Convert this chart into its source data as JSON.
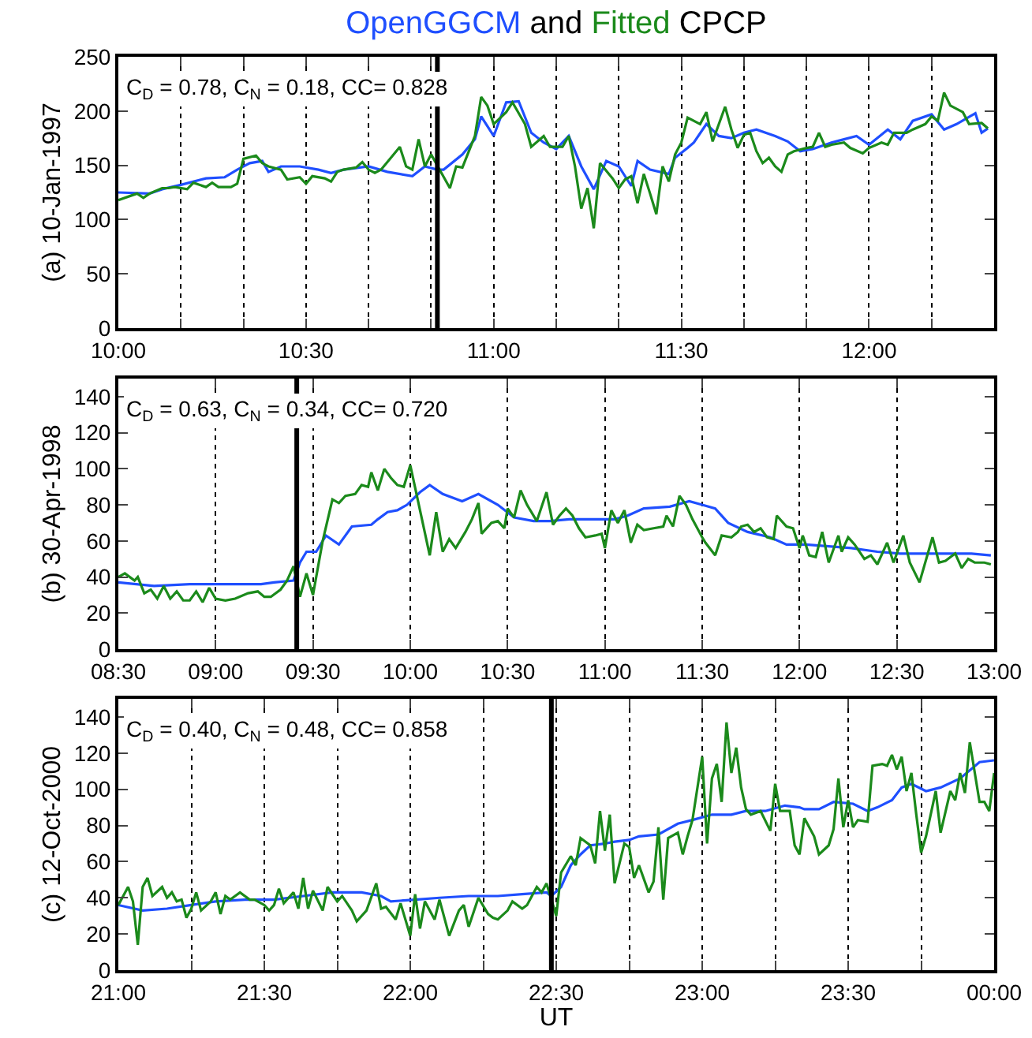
{
  "chart_data": [
    {
      "type": "line",
      "title": "OpenGGCM and Fitted CPCP",
      "ylabel": "(a) 10-Jan-1997",
      "annotations": [
        "C$_{D}$ = 0.78, C$_{N}$ = 0.18, CC= 0.828"
      ],
      "grid": "x",
      "tick_labels": "xy",
      "line_style": "solid",
      "xlim": [
        "1997-01-10T10:00",
        "1997-01-10T12:20"
      ],
      "ylim": [
        0,
        250
      ],
      "yticks": [
        0,
        50,
        100,
        150,
        200,
        250
      ],
      "xticks": [
        {
          "value": "1997-01-10T10:00",
          "label": "10:00"
        },
        {
          "value": "1997-01-10T10:10",
          "label": null
        },
        {
          "value": "1997-01-10T10:20",
          "label": null
        },
        {
          "value": "1997-01-10T10:30",
          "label": "10:30"
        },
        {
          "value": "1997-01-10T10:40",
          "label": null
        },
        {
          "value": "1997-01-10T10:50",
          "label": null
        },
        {
          "value": "1997-01-10T11:00",
          "label": "11:00"
        },
        {
          "value": "1997-01-10T11:10",
          "label": null
        },
        {
          "value": "1997-01-10T11:20",
          "label": null
        },
        {
          "value": "1997-01-10T11:30",
          "label": "11:30"
        },
        {
          "value": "1997-01-10T11:40",
          "label": null
        },
        {
          "value": "1997-01-10T11:50",
          "label": null
        },
        {
          "value": "1997-01-10T12:00",
          "label": "12:00"
        },
        {
          "value": "1997-01-10T12:10",
          "label": null
        },
        {
          "value": "1997-01-10T12:20",
          "label": null
        }
      ],
      "ref_lines": [
        {
          "axis": "x",
          "value": "1997-01-10T10:51",
          "color": "#000000",
          "line_style": "solid"
        }
      ],
      "series": [
        {
          "color": "#1f4fff",
          "x": [
            "1997-01-10T10:00",
            "1997-01-10T10:05",
            "1997-01-10T10:07",
            "1997-01-10T10:10",
            "1997-01-10T10:14",
            "1997-01-10T10:17",
            "1997-01-10T10:19",
            "1997-01-10T10:21",
            "1997-01-10T10:23",
            "1997-01-10T10:24",
            "1997-01-10T10:26",
            "1997-01-10T10:29",
            "1997-01-10T10:32",
            "1997-01-10T10:34",
            "1997-01-10T10:36",
            "1997-01-10T10:40",
            "1997-01-10T10:43",
            "1997-01-10T10:47",
            "1997-01-10T10:49",
            "1997-01-10T10:51",
            "1997-01-10T10:52",
            "1997-01-10T10:55",
            "1997-01-10T10:57",
            "1997-01-10T10:58",
            "1997-01-10T11:00",
            "1997-01-10T11:02",
            "1997-01-10T11:04",
            "1997-01-10T11:06",
            "1997-01-10T11:08",
            "1997-01-10T11:10",
            "1997-01-10T11:12",
            "1997-01-10T11:14",
            "1997-01-10T11:16",
            "1997-01-10T11:18",
            "1997-01-10T11:20",
            "1997-01-10T11:22",
            "1997-01-10T11:23",
            "1997-01-10T11:25",
            "1997-01-10T11:28",
            "1997-01-10T11:29",
            "1997-01-10T11:31",
            "1997-01-10T11:32",
            "1997-01-10T11:34",
            "1997-01-10T11:36",
            "1997-01-10T11:38",
            "1997-01-10T11:40",
            "1997-01-10T11:42",
            "1997-01-10T11:45",
            "1997-01-10T11:47",
            "1997-01-10T11:49",
            "1997-01-10T11:51",
            "1997-01-10T11:54",
            "1997-01-10T11:56",
            "1997-01-10T11:58",
            "1997-01-10T12:00",
            "1997-01-10T12:03",
            "1997-01-10T12:05",
            "1997-01-10T12:07",
            "1997-01-10T12:10",
            "1997-01-10T12:12",
            "1997-01-10T12:14",
            "1997-01-10T12:17",
            "1997-01-10T12:18",
            "1997-01-10T12:19"
          ],
          "values": [
            125,
            124,
            128,
            132,
            138,
            139,
            146,
            152,
            154,
            144,
            149,
            149,
            146,
            143,
            146,
            149,
            144,
            140,
            149,
            146,
            146,
            160,
            174,
            195,
            177,
            208,
            209,
            180,
            171,
            165,
            177,
            149,
            128,
            154,
            149,
            131,
            154,
            146,
            142,
            157,
            166,
            171,
            188,
            177,
            175,
            180,
            183,
            177,
            172,
            163,
            165,
            171,
            174,
            177,
            169,
            183,
            174,
            191,
            197,
            183,
            188,
            198,
            180,
            184
          ]
        },
        {
          "color": "#1b8a1b",
          "x": [
            "1997-01-10T10:00",
            "1997-01-10T10:02",
            "1997-01-10T10:03",
            "1997-01-10T10:04",
            "1997-01-10T10:05",
            "1997-01-10T10:07",
            "1997-01-10T10:08",
            "1997-01-10T10:09",
            "1997-01-10T10:11",
            "1997-01-10T10:12",
            "1997-01-10T10:14",
            "1997-01-10T10:15",
            "1997-01-10T10:16",
            "1997-01-10T10:18",
            "1997-01-10T10:19",
            "1997-01-10T10:20",
            "1997-01-10T10:22",
            "1997-01-10T10:23",
            "1997-01-10T10:24",
            "1997-01-10T10:26",
            "1997-01-10T10:27",
            "1997-01-10T10:29",
            "1997-01-10T10:30",
            "1997-01-10T10:31",
            "1997-01-10T10:33",
            "1997-01-10T10:34",
            "1997-01-10T10:35",
            "1997-01-10T10:36",
            "1997-01-10T10:38",
            "1997-01-10T10:39",
            "1997-01-10T10:40",
            "1997-01-10T10:41",
            "1997-01-10T10:42",
            "1997-01-10T10:43",
            "1997-01-10T10:45",
            "1997-01-10T10:46",
            "1997-01-10T10:47",
            "1997-01-10T10:48",
            "1997-01-10T10:49",
            "1997-01-10T10:50",
            "1997-01-10T10:53",
            "1997-01-10T10:54",
            "1997-01-10T10:55",
            "1997-01-10T10:57",
            "1997-01-10T10:58",
            "1997-01-10T10:59",
            "1997-01-10T11:00",
            "1997-01-10T11:02",
            "1997-01-10T11:03",
            "1997-01-10T11:05",
            "1997-01-10T11:06",
            "1997-01-10T11:08",
            "1997-01-10T11:09",
            "1997-01-10T11:11",
            "1997-01-10T11:12",
            "1997-01-10T11:13",
            "1997-01-10T11:14",
            "1997-01-10T11:15",
            "1997-01-10T11:16",
            "1997-01-10T11:17",
            "1997-01-10T11:19",
            "1997-01-10T11:20",
            "1997-01-10T11:21",
            "1997-01-10T11:22",
            "1997-01-10T11:23",
            "1997-01-10T11:24",
            "1997-01-10T11:25",
            "1997-01-10T11:26",
            "1997-01-10T11:27",
            "1997-01-10T11:28",
            "1997-01-10T11:29",
            "1997-01-10T11:30",
            "1997-01-10T11:31",
            "1997-01-10T11:33",
            "1997-01-10T11:34",
            "1997-01-10T11:35",
            "1997-01-10T11:36",
            "1997-01-10T11:37",
            "1997-01-10T11:38",
            "1997-01-10T11:39",
            "1997-01-10T11:40",
            "1997-01-10T11:41",
            "1997-01-10T11:42",
            "1997-01-10T11:43",
            "1997-01-10T11:44",
            "1997-01-10T11:45",
            "1997-01-10T11:46",
            "1997-01-10T11:47",
            "1997-01-10T11:48",
            "1997-01-10T11:50",
            "1997-01-10T11:51",
            "1997-01-10T11:52",
            "1997-01-10T11:53",
            "1997-01-10T11:54",
            "1997-01-10T11:56",
            "1997-01-10T11:57",
            "1997-01-10T11:59",
            "1997-01-10T12:00",
            "1997-01-10T12:02",
            "1997-01-10T12:03",
            "1997-01-10T12:04",
            "1997-01-10T12:06",
            "1997-01-10T12:07",
            "1997-01-10T12:09",
            "1997-01-10T12:10",
            "1997-01-10T12:11",
            "1997-01-10T12:12",
            "1997-01-10T12:13",
            "1997-01-10T12:15",
            "1997-01-10T12:16",
            "1997-01-10T12:18",
            "1997-01-10T12:19"
          ],
          "values": [
            118,
            122,
            124,
            120,
            124,
            129,
            129,
            130,
            128,
            134,
            130,
            134,
            130,
            130,
            133,
            156,
            159,
            152,
            149,
            146,
            137,
            139,
            133,
            140,
            138,
            135,
            144,
            146,
            148,
            153,
            146,
            143,
            146,
            153,
            167,
            149,
            146,
            174,
            149,
            160,
            129,
            149,
            148,
            177,
            213,
            205,
            188,
            199,
            208,
            188,
            167,
            177,
            167,
            167,
            177,
            149,
            110,
            129,
            92,
            152,
            138,
            129,
            137,
            140,
            115,
            142,
            124,
            105,
            149,
            135,
            160,
            171,
            194,
            188,
            199,
            172,
            188,
            204,
            183,
            166,
            178,
            180,
            163,
            152,
            157,
            149,
            144,
            160,
            163,
            166,
            167,
            180,
            167,
            169,
            171,
            166,
            161,
            166,
            171,
            169,
            180,
            180,
            183,
            188,
            195,
            191,
            217,
            205,
            199,
            188,
            189,
            184
          ]
        }
      ]
    },
    {
      "type": "line",
      "ylabel": "(b) 30-Apr-1998",
      "annotations": [
        "C$_{D}$ = 0.63, C$_{N}$ = 0.34, CC= 0.720"
      ],
      "grid": "x",
      "line_style": "solid",
      "xlim": [
        "1998-04-30T08:30",
        "1998-04-30T13:00"
      ],
      "ylim": [
        0,
        150
      ],
      "yticks": [
        0,
        20,
        40,
        60,
        80,
        100,
        120,
        140
      ],
      "xticks": [
        {
          "value": "1998-04-30T08:30",
          "label": "08:30"
        },
        {
          "value": "1998-04-30T09:00",
          "label": "09:00"
        },
        {
          "value": "1998-04-30T09:30",
          "label": "09:30"
        },
        {
          "value": "1998-04-30T10:00",
          "label": "10:00"
        },
        {
          "value": "1998-04-30T10:30",
          "label": "10:30"
        },
        {
          "value": "1998-04-30T11:00",
          "label": "11:00"
        },
        {
          "value": "1998-04-30T11:30",
          "label": "11:30"
        },
        {
          "value": "1998-04-30T12:00",
          "label": "12:00"
        },
        {
          "value": "1998-04-30T12:30",
          "label": "12:30"
        },
        {
          "value": "1998-04-30T13:00",
          "label": "13:00"
        }
      ],
      "ref_lines": [
        {
          "axis": "x",
          "value": "1998-04-30T09:25",
          "color": "#000000",
          "line_style": "solid"
        }
      ],
      "series": [
        {
          "color": "#1f4fff",
          "x": [
            "1998-04-30T08:30",
            "1998-04-30T08:41",
            "1998-04-30T08:52",
            "1998-04-30T09:03",
            "1998-04-30T09:14",
            "1998-04-30T09:18",
            "1998-04-30T09:24",
            "1998-04-30T09:26",
            "1998-04-30T09:28",
            "1998-04-30T09:31",
            "1998-04-30T09:34",
            "1998-04-30T09:38",
            "1998-04-30T09:42",
            "1998-04-30T09:48",
            "1998-04-30T09:50",
            "1998-04-30T09:53",
            "1998-04-30T09:56",
            "1998-04-30T09:59",
            "1998-04-30T10:03",
            "1998-04-30T10:06",
            "1998-04-30T10:10",
            "1998-04-30T10:16",
            "1998-04-30T10:21",
            "1998-04-30T10:27",
            "1998-04-30T10:32",
            "1998-04-30T10:38",
            "1998-04-30T10:43",
            "1998-04-30T10:49",
            "1998-04-30T10:54",
            "1998-04-30T11:00",
            "1998-04-30T11:03",
            "1998-04-30T11:07",
            "1998-04-30T11:12",
            "1998-04-30T11:20",
            "1998-04-30T11:26",
            "1998-04-30T11:30",
            "1998-04-30T11:34",
            "1998-04-30T11:38",
            "1998-04-30T11:44",
            "1998-04-30T11:51",
            "1998-04-30T11:56",
            "1998-04-30T12:02",
            "1998-04-30T12:09",
            "1998-04-30T12:16",
            "1998-04-30T12:24",
            "1998-04-30T12:31",
            "1998-04-30T12:38",
            "1998-04-30T12:45",
            "1998-04-30T12:53",
            "1998-04-30T12:59"
          ],
          "values": [
            37,
            35,
            36,
            36,
            36,
            37,
            38,
            48,
            54,
            54,
            63,
            58,
            68,
            69,
            72,
            76,
            77,
            80,
            87,
            91,
            86,
            82,
            86,
            80,
            73,
            71,
            71,
            72,
            72,
            72,
            72,
            74,
            78,
            79,
            82,
            80,
            78,
            70,
            65,
            62,
            58,
            58,
            57,
            56,
            54,
            53,
            53,
            53,
            53,
            52
          ]
        },
        {
          "color": "#1b8a1b",
          "x": [
            "1998-04-30T08:30",
            "1998-04-30T08:32",
            "1998-04-30T08:35",
            "1998-04-30T08:36",
            "1998-04-30T08:38",
            "1998-04-30T08:40",
            "1998-04-30T08:42",
            "1998-04-30T08:44",
            "1998-04-30T08:46",
            "1998-04-30T08:48",
            "1998-04-30T08:50",
            "1998-04-30T08:52",
            "1998-04-30T08:54",
            "1998-04-30T08:56",
            "1998-04-30T08:58",
            "1998-04-30T09:00",
            "1998-04-30T09:03",
            "1998-04-30T09:06",
            "1998-04-30T09:10",
            "1998-04-30T09:13",
            "1998-04-30T09:15",
            "1998-04-30T09:17",
            "1998-04-30T09:20",
            "1998-04-30T09:22",
            "1998-04-30T09:24",
            "1998-04-30T09:26",
            "1998-04-30T09:28",
            "1998-04-30T09:30",
            "1998-04-30T09:33",
            "1998-04-30T09:36",
            "1998-04-30T09:38",
            "1998-04-30T09:40",
            "1998-04-30T09:43",
            "1998-04-30T09:45",
            "1998-04-30T09:47",
            "1998-04-30T09:48",
            "1998-04-30T09:50",
            "1998-04-30T09:52",
            "1998-04-30T09:54",
            "1998-04-30T09:56",
            "1998-04-30T09:58",
            "1998-04-30T10:00",
            "1998-04-30T10:03",
            "1998-04-30T10:06",
            "1998-04-30T10:08",
            "1998-04-30T10:10",
            "1998-04-30T10:12",
            "1998-04-30T10:14",
            "1998-04-30T10:17",
            "1998-04-30T10:19",
            "1998-04-30T10:21",
            "1998-04-30T10:22",
            "1998-04-30T10:25",
            "1998-04-30T10:27",
            "1998-04-30T10:29",
            "1998-04-30T10:30",
            "1998-04-30T10:32",
            "1998-04-30T10:34",
            "1998-04-30T10:36",
            "1998-04-30T10:39",
            "1998-04-30T10:42",
            "1998-04-30T10:44",
            "1998-04-30T10:46",
            "1998-04-30T10:48",
            "1998-04-30T10:50",
            "1998-04-30T10:52",
            "1998-04-30T10:54",
            "1998-04-30T10:57",
            "1998-04-30T10:59",
            "1998-04-30T11:00",
            "1998-04-30T11:02",
            "1998-04-30T11:04",
            "1998-04-30T11:06",
            "1998-04-30T11:08",
            "1998-04-30T11:10",
            "1998-04-30T11:12",
            "1998-04-30T11:15",
            "1998-04-30T11:18",
            "1998-04-30T11:19",
            "1998-04-30T11:21",
            "1998-04-30T11:23",
            "1998-04-30T11:25",
            "1998-04-30T11:27",
            "1998-04-30T11:30",
            "1998-04-30T11:31",
            "1998-04-30T11:34",
            "1998-04-30T11:36",
            "1998-04-30T11:39",
            "1998-04-30T11:41",
            "1998-04-30T11:42",
            "1998-04-30T11:44",
            "1998-04-30T11:46",
            "1998-04-30T11:48",
            "1998-04-30T11:50",
            "1998-04-30T11:52",
            "1998-04-30T11:53",
            "1998-04-30T11:56",
            "1998-04-30T11:58",
            "1998-04-30T12:00",
            "1998-04-30T12:01",
            "1998-04-30T12:03",
            "1998-04-30T12:05",
            "1998-04-30T12:07",
            "1998-04-30T12:09",
            "1998-04-30T12:12",
            "1998-04-30T12:13",
            "1998-04-30T12:15",
            "1998-04-30T12:17",
            "1998-04-30T12:20",
            "1998-04-30T12:22",
            "1998-04-30T12:24",
            "1998-04-30T12:27",
            "1998-04-30T12:29",
            "1998-04-30T12:32",
            "1998-04-30T12:34",
            "1998-04-30T12:37",
            "1998-04-30T12:41",
            "1998-04-30T12:43",
            "1998-04-30T12:45",
            "1998-04-30T12:48",
            "1998-04-30T12:50",
            "1998-04-30T12:52",
            "1998-04-30T12:54",
            "1998-04-30T12:57",
            "1998-04-30T12:59"
          ],
          "values": [
            40,
            42,
            38,
            40,
            31,
            33,
            28,
            35,
            28,
            32,
            27,
            27,
            32,
            26,
            34,
            28,
            27,
            28,
            31,
            32,
            29,
            29,
            33,
            38,
            46,
            29,
            42,
            30,
            60,
            83,
            81,
            85,
            86,
            91,
            90,
            98,
            88,
            100,
            95,
            91,
            90,
            102,
            77,
            52,
            76,
            54,
            61,
            56,
            65,
            72,
            81,
            64,
            70,
            71,
            67,
            78,
            73,
            88,
            80,
            71,
            87,
            69,
            74,
            78,
            74,
            67,
            62,
            63,
            64,
            56,
            77,
            70,
            77,
            59,
            69,
            66,
            67,
            68,
            74,
            68,
            85,
            80,
            72,
            62,
            59,
            52,
            63,
            62,
            65,
            68,
            69,
            65,
            67,
            62,
            61,
            74,
            68,
            67,
            56,
            63,
            52,
            51,
            65,
            48,
            63,
            54,
            62,
            58,
            50,
            52,
            47,
            59,
            48,
            63,
            48,
            37,
            62,
            48,
            49,
            53,
            45,
            50,
            48,
            48,
            47
          ]
        }
      ]
    },
    {
      "type": "line",
      "ylabel": "(c) 12-Oct-2000",
      "xlabel": "UT",
      "annotations": [
        "C$_{D}$ = 0.40, C$_{N}$ = 0.48, CC= 0.858"
      ],
      "grid": "x",
      "line_style": "solid",
      "xlim": [
        "2000-10-12T21:00",
        "2000-10-13T00:00"
      ],
      "ylim": [
        0,
        150
      ],
      "yticks": [
        0,
        20,
        40,
        60,
        80,
        100,
        120,
        140
      ],
      "xticks": [
        {
          "value": "2000-10-12T21:00",
          "label": "21:00"
        },
        {
          "value": "2000-10-12T21:15",
          "label": null
        },
        {
          "value": "2000-10-12T21:30",
          "label": "21:30"
        },
        {
          "value": "2000-10-12T21:45",
          "label": null
        },
        {
          "value": "2000-10-12T22:00",
          "label": "22:00"
        },
        {
          "value": "2000-10-12T22:15",
          "label": null
        },
        {
          "value": "2000-10-12T22:30",
          "label": "22:30"
        },
        {
          "value": "2000-10-12T22:45",
          "label": null
        },
        {
          "value": "2000-10-12T23:00",
          "label": "23:00"
        },
        {
          "value": "2000-10-12T23:15",
          "label": null
        },
        {
          "value": "2000-10-12T23:30",
          "label": "23:30"
        },
        {
          "value": "2000-10-12T23:45",
          "label": null
        },
        {
          "value": "2000-10-13T00:00",
          "label": "00:00"
        }
      ],
      "ref_lines": [
        {
          "axis": "x",
          "value": "2000-10-12T22:29",
          "color": "#000000",
          "line_style": "solid"
        }
      ],
      "series": [
        {
          "color": "#1f4fff",
          "x": [
            "2000-10-12T21:00",
            "2000-10-12T21:05",
            "2000-10-12T21:10",
            "2000-10-12T21:15",
            "2000-10-12T21:20",
            "2000-10-12T21:26",
            "2000-10-12T21:32",
            "2000-10-12T21:38",
            "2000-10-12T21:44",
            "2000-10-12T21:50",
            "2000-10-12T21:54",
            "2000-10-12T21:56",
            "2000-10-12T22:01",
            "2000-10-12T22:06",
            "2000-10-12T22:12",
            "2000-10-12T22:18",
            "2000-10-12T22:23",
            "2000-10-12T22:28",
            "2000-10-12T22:29",
            "2000-10-12T22:31",
            "2000-10-12T22:33",
            "2000-10-12T22:35",
            "2000-10-12T22:37",
            "2000-10-12T22:40",
            "2000-10-12T22:42",
            "2000-10-12T22:45",
            "2000-10-12T22:47",
            "2000-10-12T22:51",
            "2000-10-12T22:55",
            "2000-10-12T22:58",
            "2000-10-12T23:02",
            "2000-10-12T23:06",
            "2000-10-12T23:09",
            "2000-10-12T23:13",
            "2000-10-12T23:17",
            "2000-10-12T23:20",
            "2000-10-12T23:21",
            "2000-10-12T23:24",
            "2000-10-12T23:27",
            "2000-10-12T23:31",
            "2000-10-12T23:34",
            "2000-10-12T23:36",
            "2000-10-12T23:39",
            "2000-10-12T23:41",
            "2000-10-12T23:43",
            "2000-10-12T23:46",
            "2000-10-12T23:49",
            "2000-10-12T23:53",
            "2000-10-12T23:57",
            "2000-10-13T00:00"
          ],
          "values": [
            36,
            33,
            34,
            36,
            38,
            39,
            39,
            41,
            43,
            43,
            41,
            38,
            39,
            40,
            41,
            41,
            42,
            43,
            41,
            46,
            58,
            64,
            69,
            70,
            71,
            72,
            74,
            75,
            81,
            83,
            86,
            86,
            88,
            88,
            91,
            90,
            89,
            89,
            93,
            92,
            88,
            90,
            94,
            101,
            103,
            99,
            101,
            106,
            115,
            116
          ]
        },
        {
          "color": "#1b8a1b",
          "x": [
            "2000-10-12T21:00",
            "2000-10-12T21:02",
            "2000-10-12T21:03",
            "2000-10-12T21:04",
            "2000-10-12T21:05",
            "2000-10-12T21:06",
            "2000-10-12T21:07",
            "2000-10-12T21:09",
            "2000-10-12T21:10",
            "2000-10-12T21:11",
            "2000-10-12T21:12",
            "2000-10-12T21:13",
            "2000-10-12T21:14",
            "2000-10-12T21:15",
            "2000-10-12T21:16",
            "2000-10-12T21:17",
            "2000-10-12T21:19",
            "2000-10-12T21:20",
            "2000-10-12T21:21",
            "2000-10-12T21:22",
            "2000-10-12T21:23",
            "2000-10-12T21:25",
            "2000-10-12T21:27",
            "2000-10-12T21:28",
            "2000-10-12T21:30",
            "2000-10-12T21:31",
            "2000-10-12T21:32",
            "2000-10-12T21:33",
            "2000-10-12T21:34",
            "2000-10-12T21:36",
            "2000-10-12T21:37",
            "2000-10-12T21:38",
            "2000-10-12T21:39",
            "2000-10-12T21:40",
            "2000-10-12T21:42",
            "2000-10-12T21:43",
            "2000-10-12T21:45",
            "2000-10-12T21:46",
            "2000-10-12T21:48",
            "2000-10-12T21:49",
            "2000-10-12T21:51",
            "2000-10-12T21:53",
            "2000-10-12T21:54",
            "2000-10-12T21:55",
            "2000-10-12T21:57",
            "2000-10-12T21:58",
            "2000-10-12T22:00",
            "2000-10-12T22:01",
            "2000-10-12T22:02",
            "2000-10-12T22:03",
            "2000-10-12T22:05",
            "2000-10-12T22:06",
            "2000-10-12T22:08",
            "2000-10-12T22:10",
            "2000-10-12T22:11",
            "2000-10-12T22:12",
            "2000-10-12T22:14",
            "2000-10-12T22:16",
            "2000-10-12T22:17",
            "2000-10-12T22:18",
            "2000-10-12T22:20",
            "2000-10-12T22:21",
            "2000-10-12T22:23",
            "2000-10-12T22:24",
            "2000-10-12T22:26",
            "2000-10-12T22:27",
            "2000-10-12T22:28",
            "2000-10-12T22:29",
            "2000-10-12T22:30",
            "2000-10-12T22:31",
            "2000-10-12T22:33",
            "2000-10-12T22:34",
            "2000-10-12T22:35",
            "2000-10-12T22:37",
            "2000-10-12T22:38",
            "2000-10-12T22:39",
            "2000-10-12T22:40",
            "2000-10-12T22:41",
            "2000-10-12T22:42",
            "2000-10-12T22:44",
            "2000-10-12T22:45",
            "2000-10-12T22:46",
            "2000-10-12T22:47",
            "2000-10-12T22:49",
            "2000-10-12T22:50",
            "2000-10-12T22:51",
            "2000-10-12T22:52",
            "2000-10-12T22:53",
            "2000-10-12T22:55",
            "2000-10-12T22:56",
            "2000-10-12T22:57",
            "2000-10-12T22:58",
            "2000-10-12T23:00",
            "2000-10-12T23:01",
            "2000-10-12T23:02",
            "2000-10-12T23:03",
            "2000-10-12T23:04",
            "2000-10-12T23:05",
            "2000-10-12T23:06",
            "2000-10-12T23:07",
            "2000-10-12T23:08",
            "2000-10-12T23:09",
            "2000-10-12T23:10",
            "2000-10-12T23:12",
            "2000-10-12T23:14",
            "2000-10-12T23:15",
            "2000-10-12T23:16",
            "2000-10-12T23:18",
            "2000-10-12T23:19",
            "2000-10-12T23:20",
            "2000-10-12T23:21",
            "2000-10-12T23:23",
            "2000-10-12T23:24",
            "2000-10-12T23:26",
            "2000-10-12T23:27",
            "2000-10-12T23:28",
            "2000-10-12T23:29",
            "2000-10-12T23:30",
            "2000-10-12T23:31",
            "2000-10-12T23:32",
            "2000-10-12T23:34",
            "2000-10-12T23:35",
            "2000-10-12T23:37",
            "2000-10-12T23:38",
            "2000-10-12T23:39",
            "2000-10-12T23:40",
            "2000-10-12T23:41",
            "2000-10-12T23:42",
            "2000-10-12T23:43",
            "2000-10-12T23:44",
            "2000-10-12T23:45",
            "2000-10-12T23:46",
            "2000-10-12T23:48",
            "2000-10-12T23:49",
            "2000-10-12T23:51",
            "2000-10-12T23:52",
            "2000-10-12T23:53",
            "2000-10-12T23:54",
            "2000-10-12T23:55",
            "2000-10-12T23:57",
            "2000-10-12T23:58",
            "2000-10-12T23:59",
            "2000-10-13T00:00"
          ],
          "values": [
            36,
            46,
            38,
            14,
            46,
            51,
            41,
            46,
            40,
            43,
            38,
            39,
            29,
            34,
            43,
            33,
            38,
            43,
            31,
            41,
            39,
            43,
            39,
            39,
            36,
            33,
            36,
            45,
            37,
            43,
            34,
            51,
            34,
            44,
            33,
            46,
            38,
            41,
            33,
            27,
            33,
            48,
            34,
            35,
            28,
            37,
            19,
            42,
            23,
            38,
            28,
            39,
            19,
            33,
            36,
            24,
            40,
            31,
            29,
            28,
            33,
            38,
            34,
            36,
            46,
            43,
            48,
            39,
            30,
            54,
            63,
            58,
            73,
            69,
            59,
            88,
            66,
            86,
            48,
            70,
            68,
            51,
            58,
            43,
            49,
            79,
            39,
            73,
            76,
            64,
            74,
            83,
            118,
            70,
            106,
            114,
            93,
            137,
            109,
            123,
            101,
            89,
            86,
            88,
            77,
            103,
            88,
            88,
            69,
            64,
            84,
            74,
            64,
            69,
            78,
            106,
            79,
            94,
            79,
            83,
            82,
            113,
            114,
            113,
            119,
            111,
            118,
            99,
            109,
            86,
            65,
            74,
            99,
            76,
            99,
            94,
            109,
            98,
            126,
            93,
            93,
            88,
            109
          ]
        }
      ]
    }
  ]
}
